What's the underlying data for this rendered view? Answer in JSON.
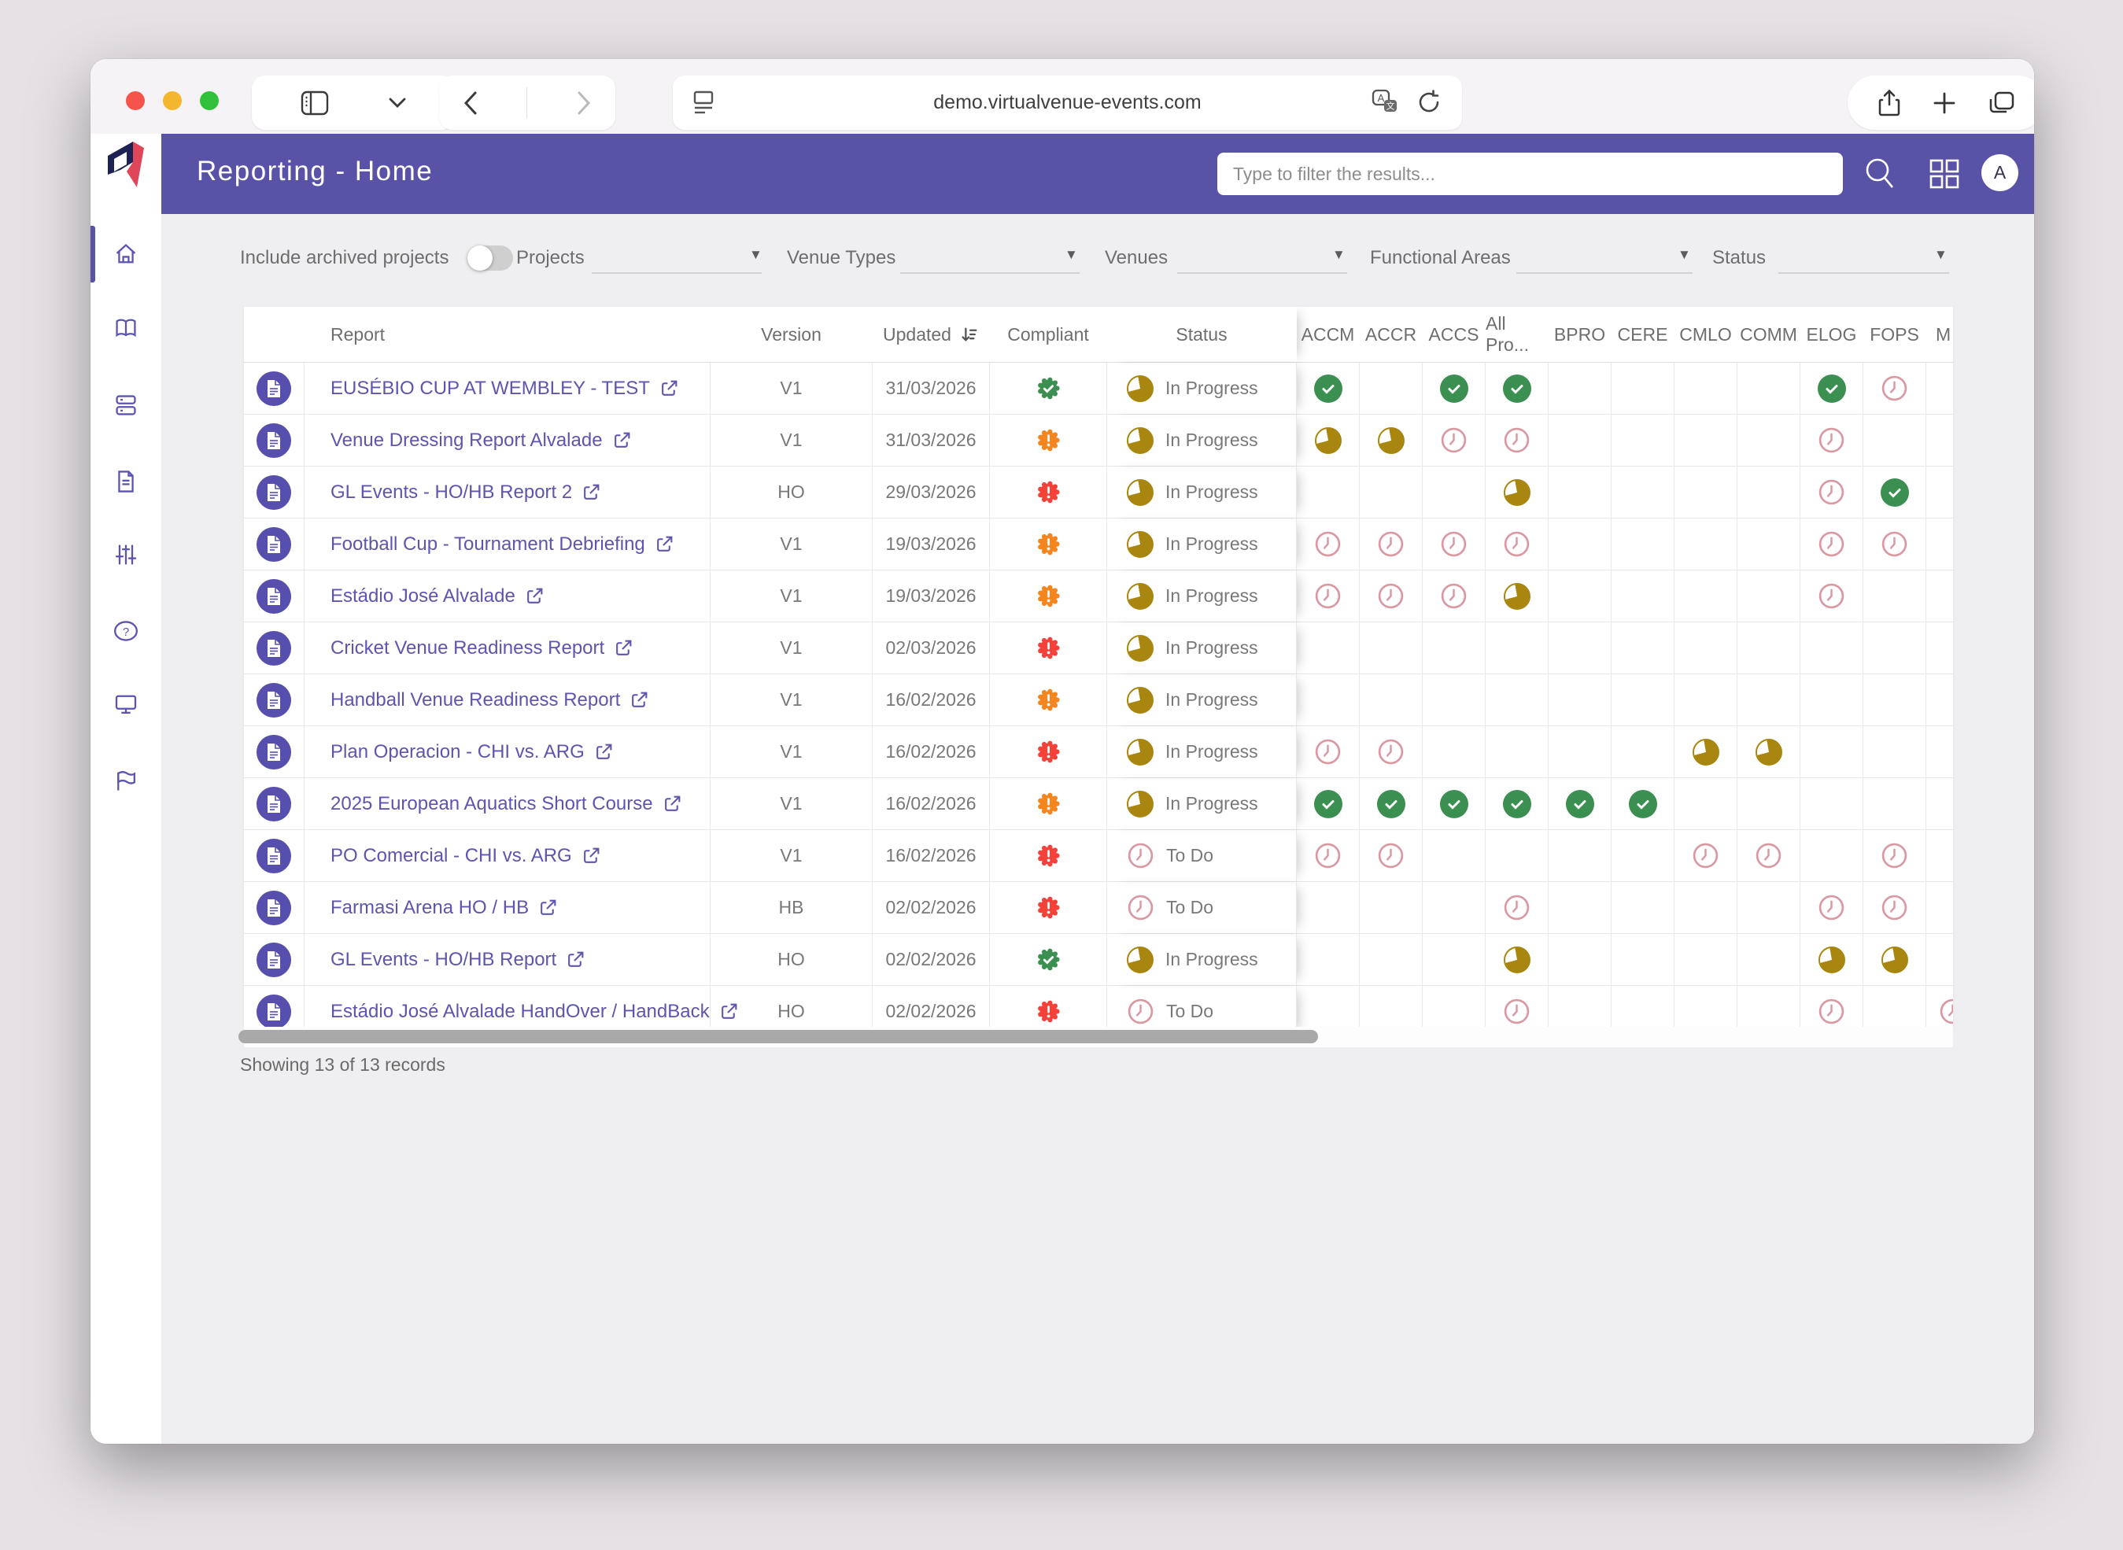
{
  "browser": {
    "url": "demo.virtualvenue-events.com"
  },
  "header": {
    "title": "Reporting - Home",
    "search_placeholder": "Type to filter the results...",
    "avatar_initial": "A"
  },
  "filters": {
    "archived_label": "Include archived projects",
    "archived_on": false,
    "dropdowns": [
      "Projects",
      "Venue Types",
      "Venues",
      "Functional Areas",
      "Status"
    ]
  },
  "table": {
    "fixed_headers": [
      "Report",
      "Version",
      "Updated",
      "Compliant",
      "Status"
    ],
    "area_headers": [
      "ACCM",
      "ACCR",
      "ACCS",
      "All Pro...",
      "BPRO",
      "CERE",
      "CMLO",
      "COMM",
      "ELOG",
      "FOPS",
      "M"
    ],
    "rows": [
      {
        "report": "EUSÉBIO CUP AT WEMBLEY - TEST",
        "version": "V1",
        "updated": "31/03/2026",
        "compliant": "ok",
        "status": "In Progress",
        "areas": [
          "d",
          "",
          "d",
          "d",
          "",
          "",
          "",
          "",
          "d",
          "t",
          ""
        ]
      },
      {
        "report": "Venue Dressing Report Alvalade",
        "version": "V1",
        "updated": "31/03/2026",
        "compliant": "warn",
        "status": "In Progress",
        "areas": [
          "p",
          "p",
          "t",
          "t",
          "",
          "",
          "",
          "",
          "t",
          "",
          ""
        ]
      },
      {
        "report": "GL Events - HO/HB Report 2",
        "version": "HO",
        "updated": "29/03/2026",
        "compliant": "alert",
        "status": "In Progress",
        "areas": [
          "",
          "",
          "",
          "p",
          "",
          "",
          "",
          "",
          "t",
          "d",
          ""
        ]
      },
      {
        "report": "Football Cup - Tournament Debriefing",
        "version": "V1",
        "updated": "19/03/2026",
        "compliant": "warn",
        "status": "In Progress",
        "areas": [
          "t",
          "t",
          "t",
          "t",
          "",
          "",
          "",
          "",
          "t",
          "t",
          ""
        ]
      },
      {
        "report": "Estádio José Alvalade",
        "version": "V1",
        "updated": "19/03/2026",
        "compliant": "warn",
        "status": "In Progress",
        "areas": [
          "t",
          "t",
          "t",
          "p",
          "",
          "",
          "",
          "",
          "t",
          "",
          ""
        ]
      },
      {
        "report": "Cricket Venue Readiness Report",
        "version": "V1",
        "updated": "02/03/2026",
        "compliant": "alert",
        "status": "In Progress",
        "areas": [
          "",
          "",
          "",
          "",
          "",
          "",
          "",
          "",
          "",
          "",
          ""
        ]
      },
      {
        "report": "Handball Venue Readiness Report",
        "version": "V1",
        "updated": "16/02/2026",
        "compliant": "warn",
        "status": "In Progress",
        "areas": [
          "",
          "",
          "",
          "",
          "",
          "",
          "",
          "",
          "",
          "",
          ""
        ]
      },
      {
        "report": "Plan Operacion - CHI vs. ARG",
        "version": "V1",
        "updated": "16/02/2026",
        "compliant": "alert",
        "status": "In Progress",
        "areas": [
          "t",
          "t",
          "",
          "",
          "",
          "",
          "p",
          "p",
          "",
          "",
          ""
        ]
      },
      {
        "report": "2025 European Aquatics Short Course",
        "version": "V1",
        "updated": "16/02/2026",
        "compliant": "warn",
        "status": "In Progress",
        "areas": [
          "d",
          "d",
          "d",
          "d",
          "d",
          "d",
          "",
          "",
          "",
          "",
          ""
        ]
      },
      {
        "report": "PO Comercial - CHI vs. ARG",
        "version": "V1",
        "updated": "16/02/2026",
        "compliant": "alert",
        "status": "To Do",
        "areas": [
          "t",
          "t",
          "",
          "",
          "",
          "",
          "t",
          "t",
          "",
          "t",
          ""
        ]
      },
      {
        "report": "Farmasi Arena HO / HB",
        "version": "HB",
        "updated": "02/02/2026",
        "compliant": "alert",
        "status": "To Do",
        "areas": [
          "",
          "",
          "",
          "t",
          "",
          "",
          "",
          "",
          "t",
          "t",
          ""
        ]
      },
      {
        "report": "GL Events - HO/HB Report",
        "version": "HO",
        "updated": "02/02/2026",
        "compliant": "ok",
        "status": "In Progress",
        "areas": [
          "",
          "",
          "",
          "p",
          "",
          "",
          "",
          "",
          "p",
          "p",
          ""
        ]
      },
      {
        "report": "Estádio José Alvalade HandOver / HandBack",
        "version": "HO",
        "updated": "02/02/2026",
        "compliant": "alert",
        "status": "To Do",
        "areas": [
          "",
          "",
          "",
          "t",
          "",
          "",
          "",
          "",
          "t",
          "",
          "t"
        ]
      }
    ]
  },
  "footer": {
    "summary": "Showing 13 of 13 records"
  },
  "colors": {
    "accent_purple": "#5953a8",
    "compliant_ok": "#3b8f51",
    "compliant_warn": "#f5851e",
    "compliant_alert": "#f4423a",
    "progress_gold": "#a8860f",
    "todo_rose": "#d999a3"
  }
}
